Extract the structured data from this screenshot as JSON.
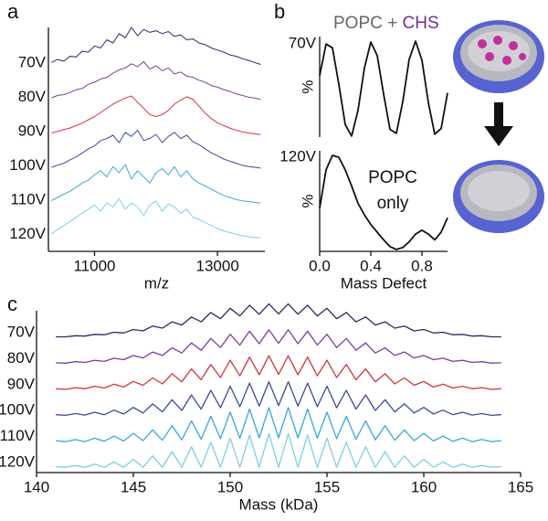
{
  "chart_data": [
    {
      "type": "line",
      "panel_label": "a",
      "xlabel": "m/z",
      "xlim": [
        10250,
        13770
      ],
      "xticks": [
        11000,
        13000
      ],
      "x": [
        10300,
        10400,
        10500,
        10600,
        10700,
        10800,
        10900,
        11000,
        11100,
        11200,
        11300,
        11400,
        11500,
        11600,
        11700,
        11800,
        11900,
        12000,
        12100,
        12200,
        12300,
        12400,
        12500,
        12600,
        12700,
        12800,
        12900,
        13000,
        13100,
        13200,
        13300,
        13400,
        13500,
        13600,
        13700
      ],
      "series": [
        {
          "name": "70V",
          "color": "#2b2a5e",
          "values": [
            0.15,
            0.22,
            0.18,
            0.3,
            0.28,
            0.42,
            0.4,
            0.55,
            0.5,
            0.7,
            0.62,
            0.85,
            0.75,
            1.0,
            0.8,
            0.95,
            0.88,
            0.92,
            0.85,
            0.9,
            0.78,
            0.82,
            0.7,
            0.72,
            0.62,
            0.58,
            0.5,
            0.45,
            0.4,
            0.33,
            0.3,
            0.24,
            0.2,
            0.15,
            0.1
          ]
        },
        {
          "name": "80V",
          "color": "#7b3f9e",
          "values": [
            0.12,
            0.18,
            0.2,
            0.25,
            0.32,
            0.35,
            0.45,
            0.5,
            0.58,
            0.62,
            0.72,
            0.8,
            0.85,
            0.95,
            0.88,
            1.0,
            0.82,
            0.9,
            0.78,
            0.85,
            0.7,
            0.75,
            0.65,
            0.62,
            0.55,
            0.5,
            0.42,
            0.38,
            0.32,
            0.28,
            0.22,
            0.18,
            0.14,
            0.12,
            0.08
          ]
        },
        {
          "name": "90V",
          "color": "#d0343a",
          "values": [
            0.1,
            0.14,
            0.18,
            0.22,
            0.28,
            0.34,
            0.42,
            0.5,
            0.6,
            0.7,
            0.8,
            0.88,
            0.95,
            1.0,
            0.85,
            0.7,
            0.55,
            0.5,
            0.55,
            0.65,
            0.8,
            0.9,
            0.98,
            0.92,
            0.75,
            0.58,
            0.45,
            0.35,
            0.28,
            0.22,
            0.17,
            0.13,
            0.1,
            0.08,
            0.06
          ]
        },
        {
          "name": "100V",
          "color": "#3a4a9a",
          "values": [
            0.1,
            0.15,
            0.2,
            0.28,
            0.35,
            0.45,
            0.55,
            0.62,
            0.75,
            0.8,
            0.88,
            0.7,
            0.95,
            0.85,
            1.0,
            0.75,
            0.8,
            0.9,
            0.7,
            0.85,
            0.95,
            0.8,
            0.88,
            0.72,
            0.65,
            0.55,
            0.45,
            0.38,
            0.3,
            0.25,
            0.2,
            0.15,
            0.12,
            0.1,
            0.08
          ]
        },
        {
          "name": "110V",
          "color": "#3aa7d8",
          "values": [
            0.12,
            0.2,
            0.28,
            0.35,
            0.45,
            0.55,
            0.62,
            0.75,
            0.85,
            0.7,
            0.95,
            0.8,
            1.0,
            0.65,
            0.85,
            0.7,
            0.55,
            0.8,
            0.9,
            0.75,
            0.95,
            0.7,
            0.85,
            0.65,
            0.55,
            0.48,
            0.4,
            0.32,
            0.25,
            0.2,
            0.15,
            0.12,
            0.1,
            0.08,
            0.06
          ]
        },
        {
          "name": "120V",
          "color": "#7fcfe0",
          "values": [
            0.15,
            0.25,
            0.35,
            0.45,
            0.55,
            0.65,
            0.75,
            0.85,
            0.7,
            0.9,
            0.8,
            1.0,
            0.75,
            0.9,
            0.8,
            0.6,
            0.85,
            0.95,
            0.7,
            0.88,
            0.8,
            0.65,
            0.75,
            0.55,
            0.5,
            0.42,
            0.35,
            0.28,
            0.22,
            0.18,
            0.14,
            0.1,
            0.08,
            0.06,
            0.05
          ]
        }
      ]
    },
    {
      "type": "line",
      "panel_label": "b",
      "ylabel": "%",
      "annotation": [
        "POPC + ",
        "CHS"
      ],
      "annotation_colors": [
        "#666666",
        "#7b2d8e"
      ],
      "xlim": [
        0,
        1
      ],
      "x": [
        0,
        0.05,
        0.1,
        0.15,
        0.2,
        0.25,
        0.3,
        0.35,
        0.4,
        0.45,
        0.5,
        0.55,
        0.6,
        0.65,
        0.7,
        0.75,
        0.8,
        0.85,
        0.9,
        0.95,
        1.0
      ],
      "series": [
        {
          "name": "70V",
          "color": "#111111",
          "values": [
            0.64,
            0.97,
            0.93,
            0.55,
            0.13,
            0.01,
            0.28,
            0.72,
            0.99,
            0.85,
            0.45,
            0.08,
            0.04,
            0.37,
            0.81,
            1.0,
            0.8,
            0.36,
            0.03,
            0.09,
            0.46
          ]
        }
      ]
    },
    {
      "type": "line",
      "ylabel": "%",
      "annotation": [
        "POPC",
        "only"
      ],
      "annotation_colors": [
        "#666666",
        "#666666"
      ],
      "xlabel": "Mass Defect",
      "xlim": [
        0,
        1
      ],
      "xticks": [
        {
          "value": 0,
          "label": "0.0"
        },
        0.4,
        0.8
      ],
      "x": [
        0,
        0.05,
        0.1,
        0.15,
        0.2,
        0.25,
        0.3,
        0.35,
        0.4,
        0.45,
        0.5,
        0.55,
        0.6,
        0.65,
        0.7,
        0.75,
        0.8,
        0.85,
        0.9,
        0.95,
        1.0
      ],
      "series": [
        {
          "name": "120V",
          "color": "#111111",
          "values": [
            0.45,
            0.85,
            1.0,
            0.98,
            0.85,
            0.68,
            0.5,
            0.38,
            0.28,
            0.2,
            0.12,
            0.05,
            0.02,
            0.04,
            0.1,
            0.18,
            0.22,
            0.18,
            0.12,
            0.2,
            0.35
          ]
        }
      ]
    },
    {
      "type": "line",
      "panel_label": "c",
      "xlabel": "Mass (kDa)",
      "xlim": [
        140,
        165
      ],
      "xticks": [
        140,
        145,
        150,
        155,
        160,
        165
      ],
      "x": [
        141,
        141.5,
        142,
        142.5,
        143,
        143.5,
        144,
        144.5,
        145,
        145.5,
        146,
        146.5,
        147,
        147.5,
        148,
        148.5,
        149,
        149.5,
        150,
        150.5,
        151,
        151.5,
        152,
        152.5,
        153,
        153.5,
        154,
        154.5,
        155,
        155.5,
        156,
        156.5,
        157,
        157.5,
        158,
        158.5,
        159,
        159.5,
        160,
        160.5,
        161,
        161.5,
        162,
        162.5,
        163,
        163.5,
        164
      ],
      "series": [
        {
          "name": "70V",
          "color": "#2b2a5e",
          "values": [
            0.04,
            0.04,
            0.07,
            0.06,
            0.11,
            0.1,
            0.17,
            0.15,
            0.25,
            0.21,
            0.35,
            0.29,
            0.47,
            0.38,
            0.61,
            0.47,
            0.74,
            0.56,
            0.86,
            0.64,
            0.95,
            0.69,
            0.99,
            0.7,
            0.99,
            0.69,
            0.95,
            0.64,
            0.86,
            0.56,
            0.74,
            0.47,
            0.61,
            0.38,
            0.47,
            0.29,
            0.35,
            0.21,
            0.25,
            0.15,
            0.17,
            0.1,
            0.11,
            0.06,
            0.07,
            0.04,
            0.04
          ]
        },
        {
          "name": "80V",
          "color": "#7b3f9e",
          "values": [
            0.04,
            0.03,
            0.07,
            0.05,
            0.11,
            0.08,
            0.17,
            0.13,
            0.25,
            0.18,
            0.35,
            0.25,
            0.47,
            0.32,
            0.61,
            0.4,
            0.74,
            0.48,
            0.86,
            0.55,
            0.95,
            0.59,
            0.99,
            0.6,
            0.99,
            0.59,
            0.95,
            0.55,
            0.86,
            0.48,
            0.74,
            0.4,
            0.61,
            0.32,
            0.47,
            0.25,
            0.35,
            0.18,
            0.25,
            0.13,
            0.17,
            0.08,
            0.11,
            0.05,
            0.07,
            0.03,
            0.04
          ]
        },
        {
          "name": "90V",
          "color": "#d0343a",
          "values": [
            0.04,
            0.02,
            0.07,
            0.04,
            0.11,
            0.06,
            0.17,
            0.09,
            0.25,
            0.14,
            0.35,
            0.18,
            0.47,
            0.24,
            0.61,
            0.3,
            0.74,
            0.36,
            0.86,
            0.41,
            0.95,
            0.44,
            0.99,
            0.45,
            0.99,
            0.44,
            0.95,
            0.41,
            0.86,
            0.36,
            0.74,
            0.3,
            0.61,
            0.24,
            0.47,
            0.18,
            0.35,
            0.14,
            0.25,
            0.09,
            0.17,
            0.06,
            0.11,
            0.04,
            0.07,
            0.02,
            0.04
          ]
        },
        {
          "name": "100V",
          "color": "#3a4a9a",
          "values": [
            0.04,
            0.02,
            0.07,
            0.03,
            0.11,
            0.04,
            0.17,
            0.06,
            0.25,
            0.09,
            0.35,
            0.12,
            0.47,
            0.16,
            0.61,
            0.2,
            0.74,
            0.24,
            0.86,
            0.27,
            0.95,
            0.29,
            0.99,
            0.3,
            0.99,
            0.29,
            0.95,
            0.27,
            0.86,
            0.24,
            0.74,
            0.2,
            0.61,
            0.16,
            0.47,
            0.12,
            0.35,
            0.09,
            0.25,
            0.06,
            0.17,
            0.04,
            0.11,
            0.03,
            0.07,
            0.02,
            0.04
          ]
        },
        {
          "name": "110V",
          "color": "#3aa7d8",
          "values": [
            0.04,
            0.01,
            0.07,
            0.01,
            0.11,
            0.02,
            0.17,
            0.03,
            0.25,
            0.04,
            0.35,
            0.05,
            0.47,
            0.06,
            0.61,
            0.08,
            0.74,
            0.1,
            0.86,
            0.11,
            0.95,
            0.12,
            0.99,
            0.12,
            0.99,
            0.12,
            0.95,
            0.11,
            0.86,
            0.1,
            0.74,
            0.08,
            0.61,
            0.06,
            0.47,
            0.05,
            0.35,
            0.04,
            0.25,
            0.03,
            0.17,
            0.02,
            0.11,
            0.01,
            0.07,
            0.01,
            0.04
          ]
        },
        {
          "name": "120V",
          "color": "#7fcfe0",
          "values": [
            0.04,
            0.02,
            0.07,
            0.02,
            0.11,
            0.02,
            0.17,
            0.02,
            0.25,
            0.02,
            0.35,
            0.02,
            0.47,
            0.02,
            0.61,
            0.02,
            0.74,
            0.02,
            0.86,
            0.02,
            0.95,
            0.02,
            0.99,
            0.02,
            0.99,
            0.02,
            0.95,
            0.02,
            0.86,
            0.02,
            0.74,
            0.02,
            0.61,
            0.02,
            0.47,
            0.02,
            0.35,
            0.02,
            0.25,
            0.02,
            0.17,
            0.02,
            0.11,
            0.02,
            0.07,
            0.02,
            0.04
          ]
        }
      ]
    }
  ]
}
